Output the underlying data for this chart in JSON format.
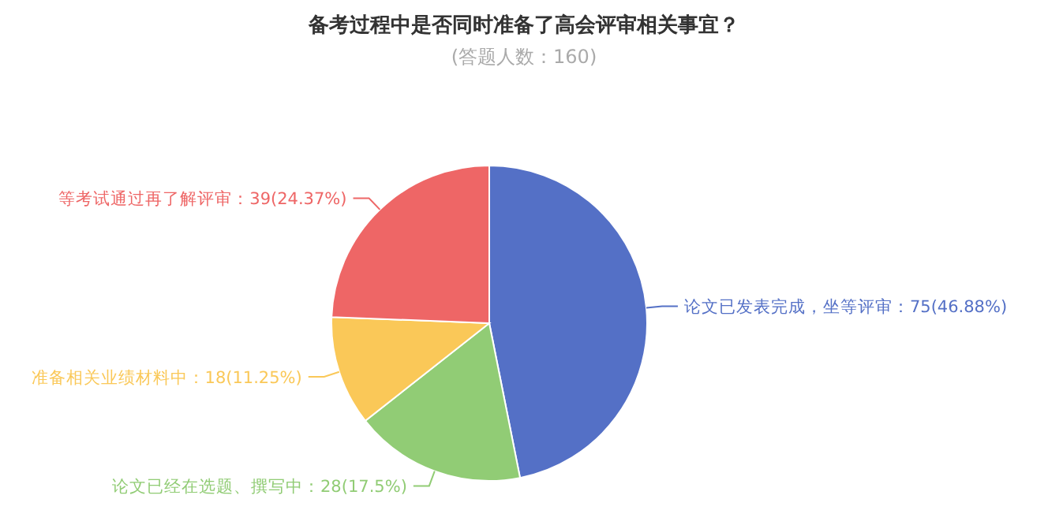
{
  "chart_data": {
    "type": "pie",
    "title": "备考过程中是否同时准备了高会评审相关事宜？",
    "subtitle": "(答题人数：160)",
    "categories": [
      "论文已发表完成，坐等评审",
      "论文已经在选题、撰写中",
      "准备相关业绩材料中",
      "等考试通过再了解评审"
    ],
    "values": [
      75,
      28,
      18,
      39
    ],
    "value_labels": [
      "：75(46.88%)",
      "：28(17.5%)",
      "：18(11.25%)",
      "：39(24.37%)"
    ],
    "colors": [
      "#5470c6",
      "#91cc75",
      "#fac858",
      "#ee6666"
    ]
  }
}
